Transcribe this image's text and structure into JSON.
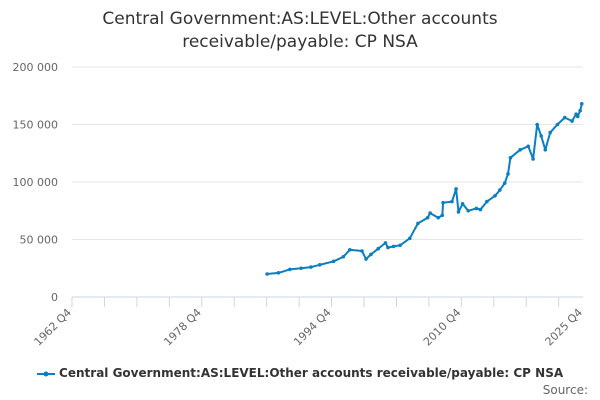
{
  "chart_data": {
    "type": "line",
    "title_line1": "Central Government:AS:LEVEL:Other accounts",
    "title_line2": "receivable/payable: CP NSA",
    "xlabel": "",
    "ylabel": "",
    "x_ticks": [
      "1962 Q4",
      "1978 Q4",
      "1994 Q4",
      "2010 Q4",
      "2025 Q4"
    ],
    "x_tick_years": [
      1962.75,
      1978.75,
      1994.75,
      2010.75,
      2025.75
    ],
    "y_ticks": [
      "0",
      "50 000",
      "100 000",
      "150 000",
      "200 000"
    ],
    "y_tick_values": [
      0,
      50000,
      100000,
      150000,
      200000
    ],
    "xlim": [
      1962.75,
      2025.75
    ],
    "ylim": [
      0,
      200000
    ],
    "grid": "horizontal",
    "legend_position": "bottom",
    "series": [
      {
        "name": "Central Government:AS:LEVEL:Other accounts receivable/payable: CP NSA",
        "color": "#0a7fc2",
        "x": [
          1986.8,
          1988.2,
          1989.6,
          1991.0,
          1992.2,
          1993.3,
          1995.0,
          1996.2,
          1997.0,
          1998.5,
          1999.0,
          1999.6,
          2000.5,
          2001.4,
          2001.7,
          2002.4,
          2003.2,
          2004.4,
          2005.4,
          2006.6,
          2006.9,
          2007.9,
          2008.4,
          2008.5,
          2009.6,
          2010.1,
          2010.4,
          2010.9,
          2011.6,
          2012.6,
          2013.1,
          2013.9,
          2014.9,
          2015.5,
          2016.1,
          2016.5,
          2016.8,
          2018.0,
          2019.0,
          2019.6,
          2020.1,
          2020.6,
          2021.1,
          2021.7,
          2022.6,
          2023.5,
          2024.4,
          2024.9,
          2025.1,
          2025.4,
          2025.6
        ],
        "y": [
          20000,
          21000,
          24000,
          25000,
          26000,
          28000,
          31000,
          35000,
          41000,
          40000,
          33000,
          37000,
          42000,
          47000,
          43000,
          44000,
          45000,
          51000,
          64000,
          69000,
          73000,
          69000,
          71000,
          82000,
          83000,
          94000,
          74000,
          81000,
          75000,
          77000,
          76000,
          83000,
          88000,
          93000,
          99000,
          107000,
          121000,
          128000,
          131000,
          120000,
          150000,
          140000,
          128000,
          143000,
          150000,
          156000,
          153000,
          159000,
          157000,
          162000,
          168000
        ]
      }
    ]
  },
  "legend_label": "Central Government:AS:LEVEL:Other accounts receivable/payable: CP NSA",
  "source_label": "Source:"
}
